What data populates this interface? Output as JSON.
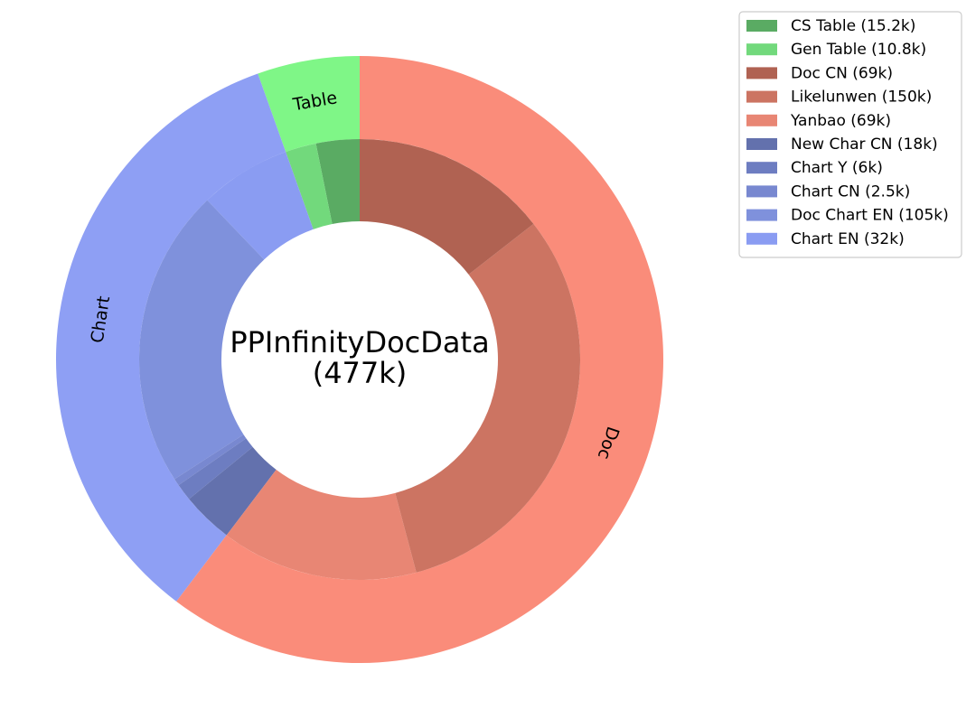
{
  "chart_data": {
    "type": "pie",
    "subtype": "nested-donut",
    "center_title": {
      "line1": "PPInfinityDocData",
      "line2": "(477k)"
    },
    "outer_ring": [
      {
        "label": "Table",
        "value": 26,
        "color": "#7ff687"
      },
      {
        "label": "Chart",
        "value": 163.5,
        "color": "#8e9ff4"
      },
      {
        "label": "Doc",
        "value": 288,
        "color": "#fa8c7a"
      }
    ],
    "inner_ring": [
      {
        "label": "CS Table (15.2k)",
        "value": 15.2,
        "color": "#5aab63"
      },
      {
        "label": "Gen Table (10.8k)",
        "value": 10.8,
        "color": "#72d97c"
      },
      {
        "label": "Chart EN (32k)",
        "value": 32,
        "color": "#8a9cf2"
      },
      {
        "label": "Doc Chart EN (105k)",
        "value": 105,
        "color": "#7f91dc"
      },
      {
        "label": "Chart CN (2.5k)",
        "value": 2.5,
        "color": "#7888d0"
      },
      {
        "label": "Chart Y (6k)",
        "value": 6,
        "color": "#6d7dc1"
      },
      {
        "label": "New Char CN (18k)",
        "value": 18,
        "color": "#6371ad"
      },
      {
        "label": "Yanbao (69k)",
        "value": 69,
        "color": "#e88674"
      },
      {
        "label": "Likelunwen (150k)",
        "value": 150,
        "color": "#cc7462"
      },
      {
        "label": "Doc CN (69k)",
        "value": 69,
        "color": "#b06252"
      }
    ],
    "legend": {
      "placement": "top-right",
      "items": [
        {
          "label": "CS Table (15.2k)",
          "color": "#5aab63"
        },
        {
          "label": "Gen Table (10.8k)",
          "color": "#72d97c"
        },
        {
          "label": "Doc CN (69k)",
          "color": "#b06252"
        },
        {
          "label": "Likelunwen (150k)",
          "color": "#cc7462"
        },
        {
          "label": "Yanbao (69k)",
          "color": "#e88674"
        },
        {
          "label": "New Char CN (18k)",
          "color": "#6371ad"
        },
        {
          "label": "Chart Y (6k)",
          "color": "#6d7dc1"
        },
        {
          "label": "Chart CN (2.5k)",
          "color": "#7888d0"
        },
        {
          "label": "Doc Chart EN (105k)",
          "color": "#7f91dc"
        },
        {
          "label": "Chart EN (32k)",
          "color": "#8a9cf2"
        }
      ]
    }
  }
}
